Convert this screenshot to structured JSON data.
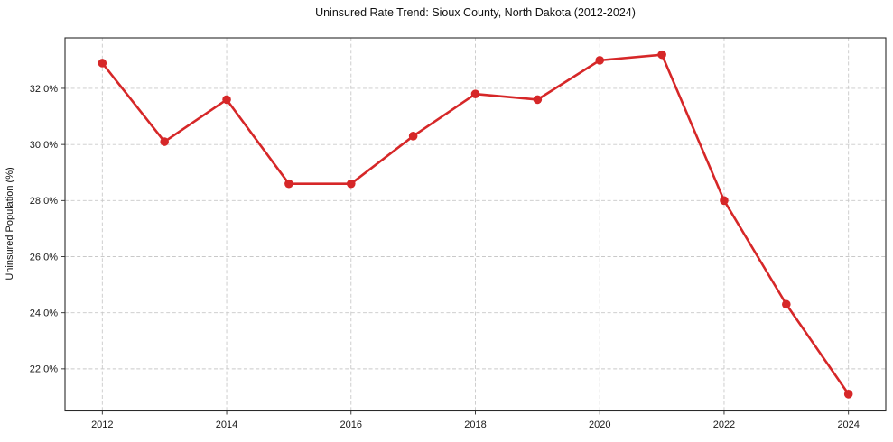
{
  "chart_data": {
    "type": "line",
    "title": "Uninsured Rate Trend: Sioux County, North Dakota (2012-2024)",
    "xlabel": "",
    "ylabel": "Uninsured Population (%)",
    "x": [
      2012,
      2013,
      2014,
      2015,
      2016,
      2017,
      2018,
      2019,
      2020,
      2021,
      2022,
      2023,
      2024
    ],
    "values": [
      32.9,
      30.1,
      31.6,
      28.6,
      28.6,
      30.3,
      31.8,
      31.6,
      33.0,
      33.2,
      28.0,
      24.3,
      21.1
    ],
    "x_ticks": [
      2012,
      2014,
      2016,
      2018,
      2020,
      2022,
      2024
    ],
    "x_tick_labels": [
      "2012",
      "2014",
      "2016",
      "2018",
      "2020",
      "2022",
      "2024"
    ],
    "y_ticks": [
      22,
      24,
      26,
      28,
      30,
      32
    ],
    "y_tick_labels": [
      "22.0%",
      "24.0%",
      "26.0%",
      "28.0%",
      "30.0%",
      "32.0%"
    ],
    "xlim": [
      2011.4,
      2024.6
    ],
    "ylim": [
      20.5,
      33.8
    ],
    "grid": true,
    "legend": false,
    "line_color": "#d62728",
    "marker": "circle"
  }
}
